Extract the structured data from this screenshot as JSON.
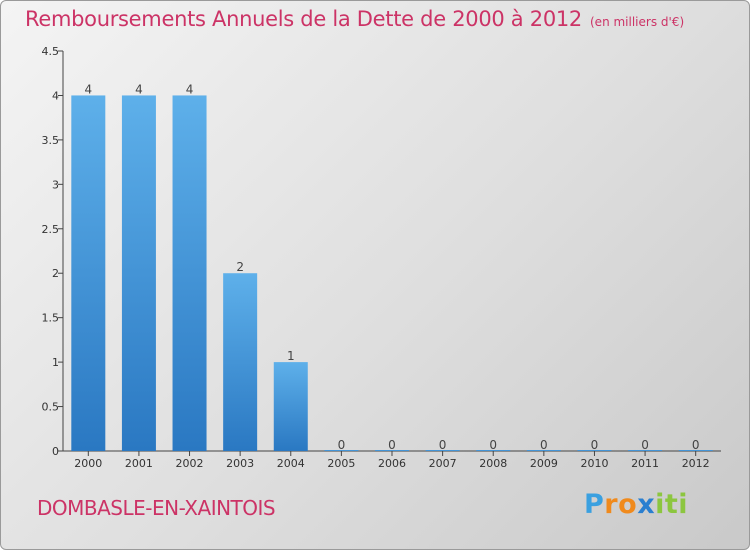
{
  "chart_data": {
    "type": "bar",
    "title": "Remboursements Annuels de la Dette de 2000 à 2012",
    "unit_note": "(en milliers d'€)",
    "categories": [
      "2000",
      "2001",
      "2002",
      "2003",
      "2004",
      "2005",
      "2006",
      "2007",
      "2008",
      "2009",
      "2010",
      "2011",
      "2012"
    ],
    "values": [
      4,
      4,
      4,
      2,
      1,
      0,
      0,
      0,
      0,
      0,
      0,
      0,
      0
    ],
    "value_labels": [
      "4",
      "4",
      "4",
      "2",
      "1",
      "0",
      "0",
      "0",
      "0",
      "0",
      "0",
      "0",
      "0"
    ],
    "ylim": [
      0,
      4.5
    ],
    "yticks": [
      0,
      0.5,
      1,
      1.5,
      2,
      2.5,
      3,
      3.5,
      4,
      4.5
    ],
    "ytick_labels": [
      "0",
      "0.5",
      "1",
      "1.5",
      "2",
      "2.5",
      "3",
      "3.5",
      "4",
      "4.5"
    ],
    "xlabel": "",
    "ylabel": "",
    "grid": false,
    "bar_color": "#3b8fd4"
  },
  "footer": {
    "commune": "DOMBASLE-EN-XAINTOIS",
    "logo_letters": [
      "P",
      "r",
      "o",
      "x",
      "i",
      "t",
      "i"
    ],
    "logo_colors": [
      "#3aa0e0",
      "#f08a1c",
      "#f08a1c",
      "#2a7fd0",
      "#8cc63f",
      "#8cc63f",
      "#8cc63f"
    ]
  }
}
